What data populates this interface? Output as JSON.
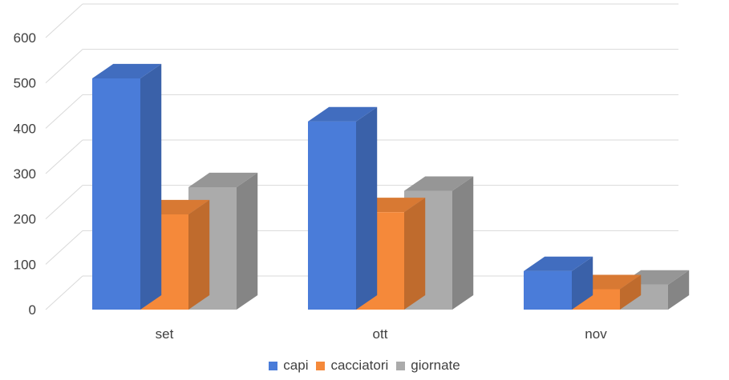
{
  "chart_data": {
    "type": "bar",
    "categories": [
      "set",
      "ott",
      "nov"
    ],
    "series": [
      {
        "name": "capi",
        "values": [
          510,
          415,
          85
        ],
        "color": "#4A7CD9"
      },
      {
        "name": "cacciatori",
        "values": [
          210,
          215,
          45
        ],
        "color": "#F5893A"
      },
      {
        "name": "giornate",
        "values": [
          270,
          262,
          55
        ],
        "color": "#ABABAB"
      }
    ],
    "title": "",
    "xlabel": "",
    "ylabel": "",
    "ylim": [
      0,
      600
    ],
    "yticks": [
      "0",
      "100",
      "200",
      "300",
      "400",
      "500",
      "600"
    ],
    "grid": true,
    "style": "3d-clustered-column",
    "legend_position": "bottom"
  }
}
